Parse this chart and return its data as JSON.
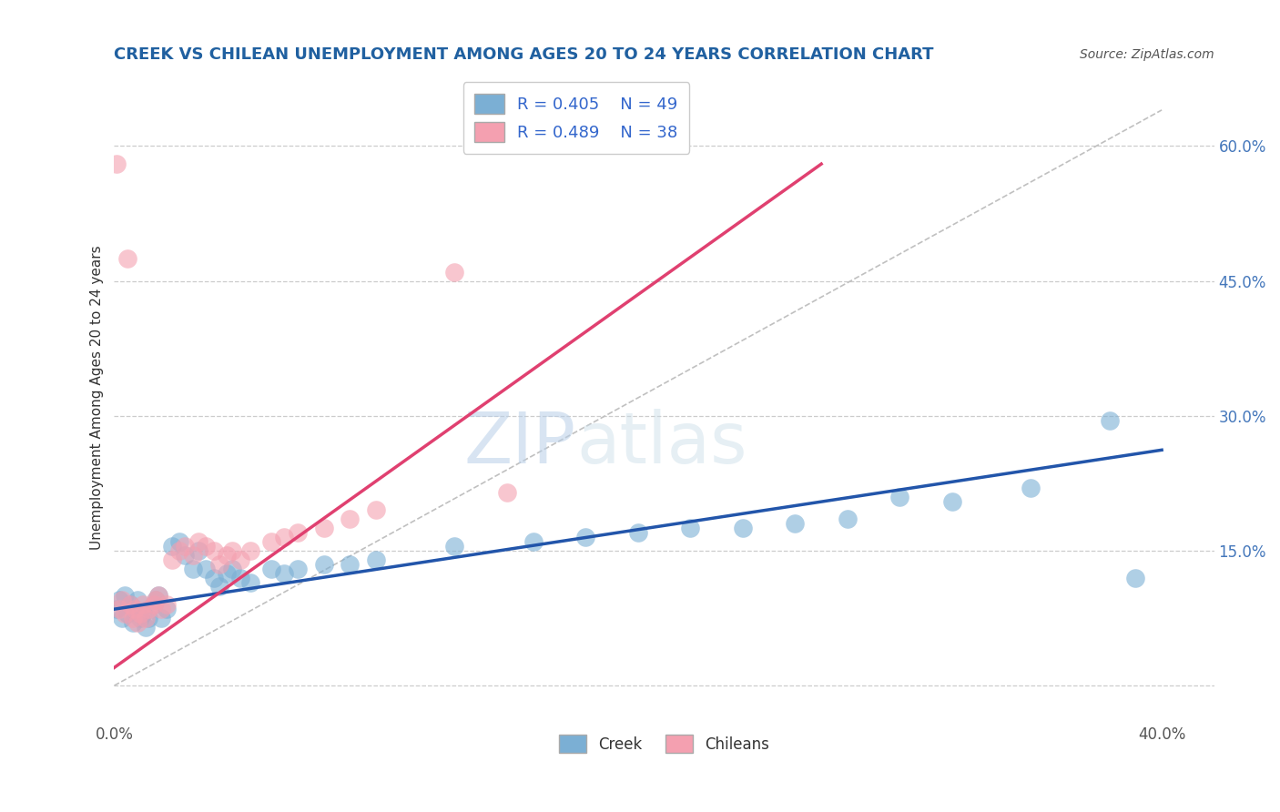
{
  "title": "CREEK VS CHILEAN UNEMPLOYMENT AMONG AGES 20 TO 24 YEARS CORRELATION CHART",
  "source_text": "Source: ZipAtlas.com",
  "ylabel": "Unemployment Among Ages 20 to 24 years",
  "xlim": [
    0.0,
    0.42
  ],
  "ylim": [
    -0.04,
    0.68
  ],
  "title_color": "#2060a0",
  "title_fontsize": 13,
  "watermark_zip": "ZIP",
  "watermark_atlas": "atlas",
  "creek_color": "#7bafd4",
  "creek_edge": "#5090c0",
  "chilean_color": "#f4a0b0",
  "chilean_edge": "#e06080",
  "creek_line_color": "#2255aa",
  "chilean_line_color": "#e04070",
  "diagonal_color": "#c0c0c0",
  "background_color": "#ffffff",
  "grid_color": "#cccccc",
  "creek_points": [
    [
      0.001,
      0.085
    ],
    [
      0.002,
      0.095
    ],
    [
      0.003,
      0.075
    ],
    [
      0.004,
      0.1
    ],
    [
      0.005,
      0.08
    ],
    [
      0.006,
      0.09
    ],
    [
      0.007,
      0.07
    ],
    [
      0.008,
      0.085
    ],
    [
      0.009,
      0.095
    ],
    [
      0.01,
      0.075
    ],
    [
      0.011,
      0.08
    ],
    [
      0.012,
      0.065
    ],
    [
      0.013,
      0.075
    ],
    [
      0.015,
      0.09
    ],
    [
      0.016,
      0.095
    ],
    [
      0.017,
      0.1
    ],
    [
      0.018,
      0.075
    ],
    [
      0.02,
      0.085
    ],
    [
      0.022,
      0.155
    ],
    [
      0.025,
      0.16
    ],
    [
      0.027,
      0.145
    ],
    [
      0.03,
      0.13
    ],
    [
      0.032,
      0.15
    ],
    [
      0.035,
      0.13
    ],
    [
      0.038,
      0.12
    ],
    [
      0.04,
      0.11
    ],
    [
      0.043,
      0.125
    ],
    [
      0.045,
      0.13
    ],
    [
      0.048,
      0.12
    ],
    [
      0.052,
      0.115
    ],
    [
      0.06,
      0.13
    ],
    [
      0.065,
      0.125
    ],
    [
      0.07,
      0.13
    ],
    [
      0.08,
      0.135
    ],
    [
      0.09,
      0.135
    ],
    [
      0.1,
      0.14
    ],
    [
      0.13,
      0.155
    ],
    [
      0.16,
      0.16
    ],
    [
      0.18,
      0.165
    ],
    [
      0.2,
      0.17
    ],
    [
      0.22,
      0.175
    ],
    [
      0.24,
      0.175
    ],
    [
      0.26,
      0.18
    ],
    [
      0.28,
      0.185
    ],
    [
      0.3,
      0.21
    ],
    [
      0.32,
      0.205
    ],
    [
      0.35,
      0.22
    ],
    [
      0.38,
      0.295
    ],
    [
      0.39,
      0.12
    ]
  ],
  "chilean_points": [
    [
      0.001,
      0.58
    ],
    [
      0.005,
      0.475
    ],
    [
      0.002,
      0.085
    ],
    [
      0.003,
      0.095
    ],
    [
      0.004,
      0.08
    ],
    [
      0.006,
      0.09
    ],
    [
      0.007,
      0.075
    ],
    [
      0.008,
      0.085
    ],
    [
      0.009,
      0.07
    ],
    [
      0.01,
      0.08
    ],
    [
      0.011,
      0.09
    ],
    [
      0.012,
      0.075
    ],
    [
      0.013,
      0.085
    ],
    [
      0.015,
      0.09
    ],
    [
      0.016,
      0.095
    ],
    [
      0.017,
      0.1
    ],
    [
      0.018,
      0.085
    ],
    [
      0.02,
      0.09
    ],
    [
      0.022,
      0.14
    ],
    [
      0.025,
      0.15
    ],
    [
      0.027,
      0.155
    ],
    [
      0.03,
      0.145
    ],
    [
      0.032,
      0.16
    ],
    [
      0.035,
      0.155
    ],
    [
      0.038,
      0.15
    ],
    [
      0.04,
      0.135
    ],
    [
      0.043,
      0.145
    ],
    [
      0.045,
      0.15
    ],
    [
      0.048,
      0.14
    ],
    [
      0.052,
      0.15
    ],
    [
      0.06,
      0.16
    ],
    [
      0.065,
      0.165
    ],
    [
      0.07,
      0.17
    ],
    [
      0.08,
      0.175
    ],
    [
      0.09,
      0.185
    ],
    [
      0.1,
      0.195
    ],
    [
      0.13,
      0.46
    ],
    [
      0.15,
      0.215
    ]
  ],
  "creek_line": [
    0.0,
    0.085,
    0.4,
    0.262
  ],
  "chilean_line": [
    0.0,
    0.02,
    0.27,
    0.58
  ],
  "diagonal_line": [
    0.0,
    0.0,
    0.4,
    0.64
  ]
}
